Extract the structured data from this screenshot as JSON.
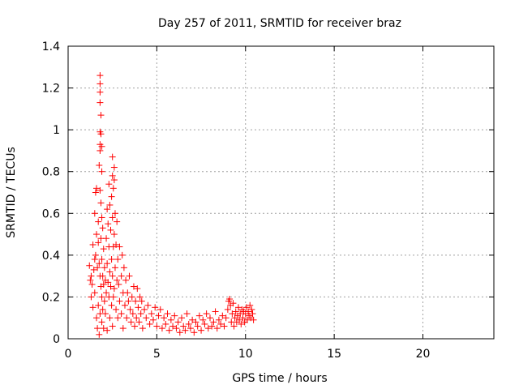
{
  "chart_data": {
    "type": "scatter",
    "title": "Day 257 of 2011, SRMTID for receiver braz",
    "xlabel": "GPS time / hours",
    "ylabel": "SRMTID / TECUs",
    "xlim": [
      0,
      24
    ],
    "ylim": [
      0,
      1.4
    ],
    "xticks": [
      0,
      5,
      10,
      15,
      20
    ],
    "yticks": [
      0,
      0.2,
      0.4,
      0.6,
      0.8,
      1,
      1.2,
      1.4
    ],
    "xtick_labels": [
      "0",
      "5",
      "10",
      "15",
      "20"
    ],
    "ytick_labels": [
      "0",
      "0.2",
      "0.4",
      "0.6",
      "0.8",
      "1",
      "1.2",
      "1.4"
    ],
    "grid": true,
    "marker": "+",
    "series": [
      {
        "name": "SRMTID",
        "color": "#ff0000",
        "points": [
          [
            1.2,
            0.35
          ],
          [
            1.25,
            0.28
          ],
          [
            1.3,
            0.3
          ],
          [
            1.3,
            0.2
          ],
          [
            1.35,
            0.26
          ],
          [
            1.4,
            0.45
          ],
          [
            1.4,
            0.15
          ],
          [
            1.45,
            0.33
          ],
          [
            1.5,
            0.6
          ],
          [
            1.5,
            0.38
          ],
          [
            1.5,
            0.22
          ],
          [
            1.55,
            0.7
          ],
          [
            1.55,
            0.4
          ],
          [
            1.6,
            0.72
          ],
          [
            1.6,
            0.5
          ],
          [
            1.6,
            0.1
          ],
          [
            1.65,
            0.34
          ],
          [
            1.65,
            0.05
          ],
          [
            1.7,
            0.56
          ],
          [
            1.7,
            0.46
          ],
          [
            1.7,
            0.16
          ],
          [
            1.75,
            0.83
          ],
          [
            1.75,
            0.36
          ],
          [
            1.75,
            0.02
          ],
          [
            1.8,
            1.26
          ],
          [
            1.8,
            1.22
          ],
          [
            1.8,
            1.18
          ],
          [
            1.8,
            1.13
          ],
          [
            1.8,
            0.99
          ],
          [
            1.8,
            0.93
          ],
          [
            1.8,
            0.9
          ],
          [
            1.8,
            0.71
          ],
          [
            1.8,
            0.3
          ],
          [
            1.8,
            0.12
          ],
          [
            1.85,
            1.07
          ],
          [
            1.85,
            0.98
          ],
          [
            1.85,
            0.65
          ],
          [
            1.85,
            0.48
          ],
          [
            1.85,
            0.25
          ],
          [
            1.9,
            0.92
          ],
          [
            1.9,
            0.8
          ],
          [
            1.9,
            0.58
          ],
          [
            1.9,
            0.38
          ],
          [
            1.9,
            0.2
          ],
          [
            1.9,
            0.08
          ],
          [
            1.95,
            0.53
          ],
          [
            1.95,
            0.3
          ],
          [
            1.95,
            0.14
          ],
          [
            2.0,
            0.43
          ],
          [
            2.0,
            0.26
          ],
          [
            2.0,
            0.05
          ],
          [
            2.05,
            0.34
          ],
          [
            2.05,
            0.18
          ],
          [
            2.1,
            0.28
          ],
          [
            2.1,
            0.12
          ],
          [
            2.15,
            0.48
          ],
          [
            2.15,
            0.22
          ],
          [
            2.2,
            0.62
          ],
          [
            2.2,
            0.36
          ],
          [
            2.2,
            0.04
          ],
          [
            2.25,
            0.55
          ],
          [
            2.25,
            0.27
          ],
          [
            2.3,
            0.74
          ],
          [
            2.3,
            0.44
          ],
          [
            2.3,
            0.2
          ],
          [
            2.35,
            0.64
          ],
          [
            2.35,
            0.32
          ],
          [
            2.35,
            0.1
          ],
          [
            2.4,
            0.52
          ],
          [
            2.4,
            0.25
          ],
          [
            2.45,
            0.68
          ],
          [
            2.45,
            0.38
          ],
          [
            2.45,
            0.16
          ],
          [
            2.5,
            0.87
          ],
          [
            2.5,
            0.78
          ],
          [
            2.5,
            0.58
          ],
          [
            2.5,
            0.3
          ],
          [
            2.5,
            0.06
          ],
          [
            2.55,
            0.72
          ],
          [
            2.55,
            0.44
          ],
          [
            2.55,
            0.2
          ],
          [
            2.6,
            0.82
          ],
          [
            2.6,
            0.76
          ],
          [
            2.6,
            0.5
          ],
          [
            2.6,
            0.24
          ],
          [
            2.65,
            0.6
          ],
          [
            2.65,
            0.34
          ],
          [
            2.7,
            0.45
          ],
          [
            2.7,
            0.14
          ],
          [
            2.75,
            0.56
          ],
          [
            2.75,
            0.28
          ],
          [
            2.8,
            0.38
          ],
          [
            2.8,
            0.1
          ],
          [
            2.85,
            0.26
          ],
          [
            2.9,
            0.44
          ],
          [
            2.9,
            0.18
          ],
          [
            3.0,
            0.3
          ],
          [
            3.0,
            0.12
          ],
          [
            3.05,
            0.4
          ],
          [
            3.1,
            0.22
          ],
          [
            3.1,
            0.05
          ],
          [
            3.15,
            0.34
          ],
          [
            3.2,
            0.16
          ],
          [
            3.25,
            0.28
          ],
          [
            3.3,
            0.1
          ],
          [
            3.35,
            0.22
          ],
          [
            3.4,
            0.18
          ],
          [
            3.45,
            0.3
          ],
          [
            3.5,
            0.14
          ],
          [
            3.55,
            0.08
          ],
          [
            3.6,
            0.2
          ],
          [
            3.65,
            0.12
          ],
          [
            3.7,
            0.25
          ],
          [
            3.75,
            0.06
          ],
          [
            3.8,
            0.18
          ],
          [
            3.85,
            0.1
          ],
          [
            3.9,
            0.24
          ],
          [
            3.95,
            0.15
          ],
          [
            4.0,
            0.08
          ],
          [
            4.05,
            0.2
          ],
          [
            4.1,
            0.12
          ],
          [
            4.15,
            0.18
          ],
          [
            4.2,
            0.05
          ],
          [
            4.3,
            0.14
          ],
          [
            4.4,
            0.1
          ],
          [
            4.5,
            0.16
          ],
          [
            4.6,
            0.07
          ],
          [
            4.7,
            0.12
          ],
          [
            4.8,
            0.09
          ],
          [
            4.9,
            0.15
          ],
          [
            5.0,
            0.06
          ],
          [
            5.1,
            0.11
          ],
          [
            5.2,
            0.14
          ],
          [
            5.3,
            0.05
          ],
          [
            5.4,
            0.1
          ],
          [
            5.5,
            0.07
          ],
          [
            5.6,
            0.12
          ],
          [
            5.7,
            0.04
          ],
          [
            5.8,
            0.09
          ],
          [
            5.9,
            0.06
          ],
          [
            6.0,
            0.11
          ],
          [
            6.1,
            0.05
          ],
          [
            6.2,
            0.08
          ],
          [
            6.3,
            0.03
          ],
          [
            6.4,
            0.1
          ],
          [
            6.5,
            0.06
          ],
          [
            6.6,
            0.04
          ],
          [
            6.7,
            0.12
          ],
          [
            6.8,
            0.07
          ],
          [
            6.9,
            0.05
          ],
          [
            7.0,
            0.09
          ],
          [
            7.1,
            0.03
          ],
          [
            7.2,
            0.08
          ],
          [
            7.3,
            0.06
          ],
          [
            7.4,
            0.11
          ],
          [
            7.5,
            0.04
          ],
          [
            7.6,
            0.09
          ],
          [
            7.7,
            0.07
          ],
          [
            7.8,
            0.12
          ],
          [
            7.9,
            0.05
          ],
          [
            8.0,
            0.1
          ],
          [
            8.1,
            0.06
          ],
          [
            8.2,
            0.08
          ],
          [
            8.3,
            0.13
          ],
          [
            8.4,
            0.05
          ],
          [
            8.5,
            0.09
          ],
          [
            8.6,
            0.07
          ],
          [
            8.7,
            0.11
          ],
          [
            8.8,
            0.06
          ],
          [
            8.9,
            0.1
          ],
          [
            9.0,
            0.14
          ],
          [
            9.05,
            0.18
          ],
          [
            9.1,
            0.19
          ],
          [
            9.15,
            0.16
          ],
          [
            9.2,
            0.08
          ],
          [
            9.25,
            0.12
          ],
          [
            9.3,
            0.17
          ],
          [
            9.35,
            0.06
          ],
          [
            9.4,
            0.1
          ],
          [
            9.45,
            0.13
          ],
          [
            9.5,
            0.08
          ],
          [
            9.55,
            0.11
          ],
          [
            9.6,
            0.15
          ],
          [
            9.65,
            0.09
          ],
          [
            9.7,
            0.12
          ],
          [
            9.75,
            0.07
          ],
          [
            9.8,
            0.14
          ],
          [
            9.85,
            0.1
          ],
          [
            9.9,
            0.13
          ],
          [
            9.95,
            0.08
          ],
          [
            10.0,
            0.12
          ],
          [
            10.05,
            0.15
          ],
          [
            10.1,
            0.09
          ],
          [
            10.15,
            0.13
          ],
          [
            10.2,
            0.11
          ],
          [
            10.25,
            0.16
          ],
          [
            10.3,
            0.1
          ],
          [
            10.35,
            0.14
          ],
          [
            10.4,
            0.12
          ],
          [
            10.45,
            0.09
          ]
        ]
      }
    ]
  }
}
